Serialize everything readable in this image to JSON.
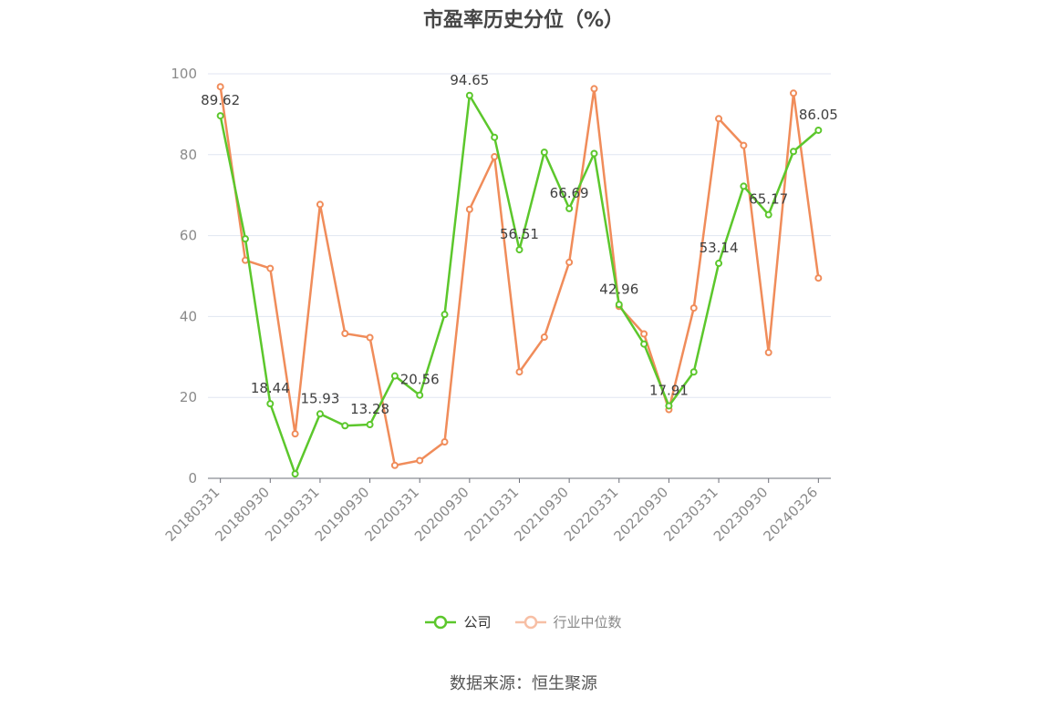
{
  "source_text": "数据来源：恒生聚源",
  "chart_data": {
    "type": "line",
    "title": "市盈率历史分位（%）",
    "xlabel": "",
    "ylabel": "",
    "ylim": [
      0,
      100
    ],
    "yticks": [
      0,
      20,
      40,
      60,
      80,
      100
    ],
    "grid": true,
    "legend_position": "bottom",
    "x": [
      "20180331",
      "20180630",
      "20180930",
      "20181231",
      "20190331",
      "20190630",
      "20190930",
      "20191231",
      "20200331",
      "20200630",
      "20200930",
      "20201231",
      "20210331",
      "20210630",
      "20210930",
      "20211231",
      "20220331",
      "20220630",
      "20220930",
      "20221231",
      "20230331",
      "20230630",
      "20230930",
      "20231231",
      "20240326"
    ],
    "xtick_labels": [
      "20180331",
      "20180930",
      "20190331",
      "20190930",
      "20200331",
      "20200930",
      "20210331",
      "20210930",
      "20220331",
      "20220930",
      "20230331",
      "20230930",
      "20240326"
    ],
    "series": [
      {
        "name": "公司",
        "color": "#5cc72c",
        "values": [
          89.62,
          59.2,
          18.44,
          1.1,
          15.93,
          13.0,
          13.28,
          25.3,
          20.56,
          40.5,
          94.65,
          84.3,
          56.51,
          80.6,
          66.69,
          80.3,
          42.96,
          33.2,
          17.91,
          26.3,
          53.14,
          72.2,
          65.17,
          80.8,
          86.05
        ],
        "data_labels": {
          "0": "89.62",
          "2": "18.44",
          "4": "15.93",
          "6": "13.28",
          "8": "20.56",
          "10": "94.65",
          "12": "56.51",
          "14": "66.69",
          "16": "42.96",
          "18": "17.91",
          "20": "53.14",
          "22": "65.17",
          "24": "86.05"
        }
      },
      {
        "name": "行业中位数",
        "color": "#f08c5a",
        "values": [
          96.8,
          53.9,
          51.9,
          11.0,
          67.7,
          35.8,
          34.8,
          3.2,
          4.4,
          9.0,
          66.5,
          79.5,
          26.3,
          34.9,
          53.4,
          96.3,
          42.5,
          35.7,
          17.0,
          42.1,
          88.9,
          82.3,
          31.1,
          95.2,
          49.5
        ]
      }
    ]
  }
}
